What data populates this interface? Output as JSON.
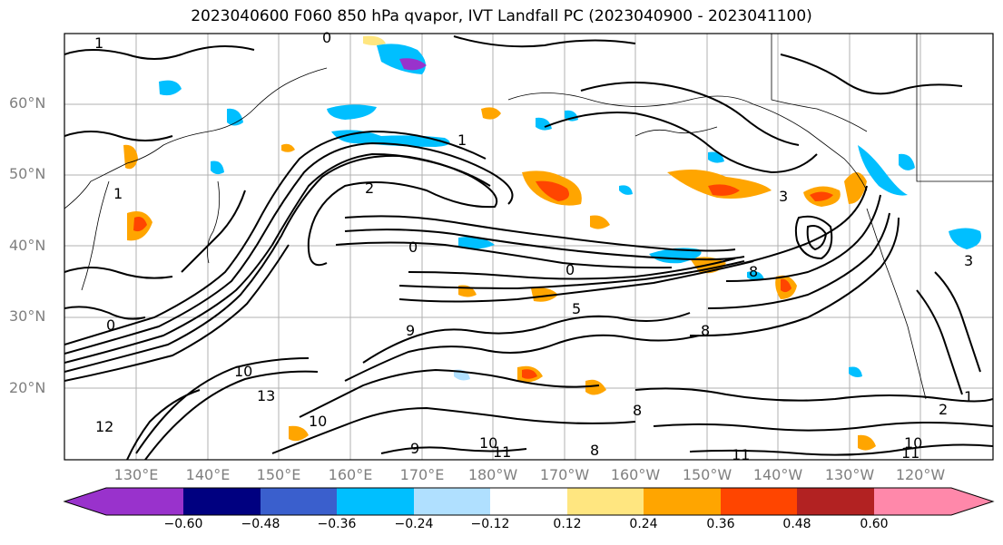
{
  "title": "2023040600 F060 850 hPa qvapor, IVT Landfall PC (2023040900 - 2023041100)",
  "map": {
    "lat_labels": [
      "60°N",
      "50°N",
      "40°N",
      "30°N",
      "20°N"
    ],
    "lon_labels": [
      "130°E",
      "140°E",
      "150°E",
      "160°E",
      "170°E",
      "180°W",
      "170°W",
      "160°W",
      "150°W",
      "140°W",
      "130°W",
      "120°W"
    ],
    "contour_labels": [
      "1",
      "0",
      "1",
      "2",
      "0",
      "1",
      "0",
      "3",
      "3",
      "8",
      "8",
      "0",
      "5",
      "9",
      "10",
      "13",
      "10",
      "11",
      "10",
      "11",
      "12",
      "8",
      "2",
      "1",
      "11",
      "10",
      "8",
      "9"
    ],
    "colors": {
      "positive_light": "#ffe680",
      "positive_mid": "#ffa500",
      "positive_strong": "#ff4500",
      "negative_light": "#b0e0ff",
      "negative_mid": "#00bfff",
      "negative_strong": "#9932cc"
    }
  },
  "colorbar": {
    "ticks": [
      "−0.60",
      "−0.48",
      "−0.36",
      "−0.24",
      "−0.12",
      "0.12",
      "0.24",
      "0.36",
      "0.48",
      "0.60"
    ],
    "colors": [
      "#9932cc",
      "#000080",
      "#3a5fcd",
      "#00bfff",
      "#b0e0ff",
      "#ffffff",
      "#ffe680",
      "#ffa500",
      "#ff4500",
      "#b22222",
      "#ff88aa"
    ]
  }
}
